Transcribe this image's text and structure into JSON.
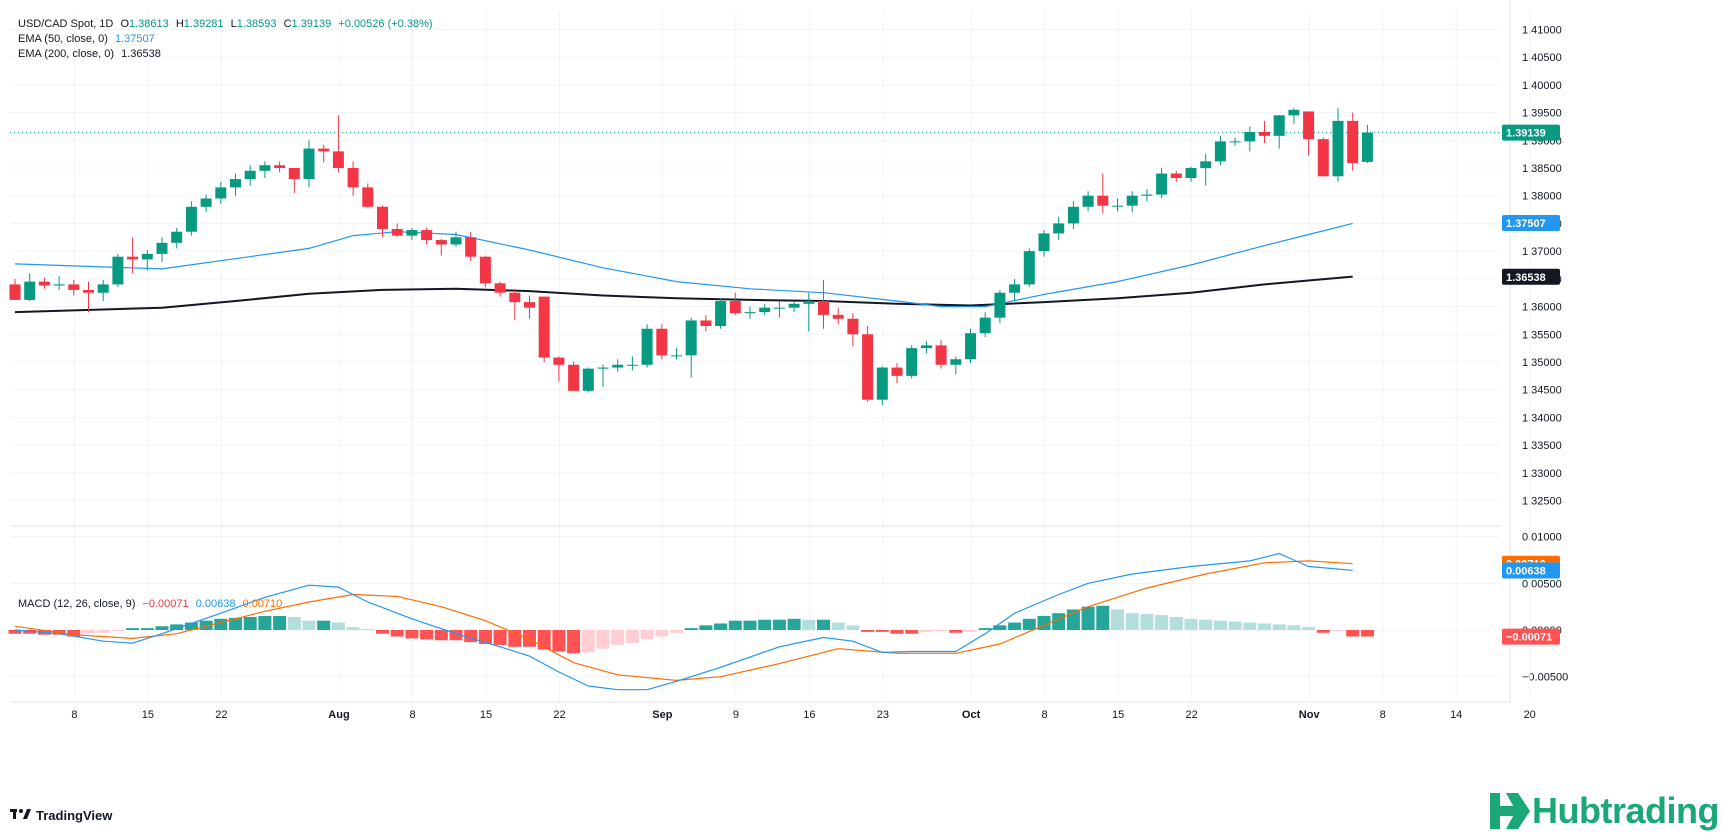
{
  "header": {
    "symbol": "USD/CAD Spot, 1D",
    "open_label": "O",
    "open": "1.38613",
    "high_label": "H",
    "high": "1.39281",
    "low_label": "L",
    "low": "1.38593",
    "close_label": "C",
    "close": "1.39139",
    "change": "+0.00526 (+0.38%)"
  },
  "ema50": {
    "label": "EMA (50, close, 0)",
    "value": "1.37507"
  },
  "ema200": {
    "label": "EMA (200, close, 0)",
    "value": "1.36538"
  },
  "macd": {
    "label": "MACD (12, 26, close, 9)",
    "hist": "−0.00071",
    "macd": "0.00638",
    "signal": "0.00710"
  },
  "footer": {
    "tradingview": "TradingView",
    "brand": "Hubtrading"
  },
  "colors": {
    "up": "#089981",
    "down": "#f23645",
    "ema50": "#2196f3",
    "ema200": "#131722",
    "signal": "#ff6d00",
    "hist_up_strong": "#26a69a",
    "hist_up_weak": "#b2dfdb",
    "hist_down_strong": "#ff5252",
    "hist_down_weak": "#ffcdd2",
    "brand": "#1aa876"
  },
  "chart_data": [
    {
      "type": "candlestick",
      "title": "USD/CAD Spot, 1D",
      "price_axis": {
        "ylim": [
          1.3215,
          1.4135
        ],
        "ticks": [
          "1.41000",
          "1.40500",
          "1.40000",
          "1.39500",
          "1.39000",
          "1.38500",
          "1.38000",
          "1.37500",
          "1.37000",
          "1.36500",
          "1.36000",
          "1.35500",
          "1.35000",
          "1.34500",
          "1.34000",
          "1.33500",
          "1.33000",
          "1.32500"
        ]
      },
      "time_axis": {
        "ticks": [
          {
            "day": 2,
            "label": "8"
          },
          {
            "day": 7,
            "label": "15"
          },
          {
            "day": 12,
            "label": "22"
          },
          {
            "day": 20,
            "label": "Aug"
          },
          {
            "day": 25,
            "label": "8"
          },
          {
            "day": 30,
            "label": "15"
          },
          {
            "day": 35,
            "label": "22"
          },
          {
            "day": 42,
            "label": "Sep"
          },
          {
            "day": 47,
            "label": "9"
          },
          {
            "day": 52,
            "label": "16"
          },
          {
            "day": 57,
            "label": "23"
          },
          {
            "day": 63,
            "label": "Oct"
          },
          {
            "day": 68,
            "label": "8"
          },
          {
            "day": 73,
            "label": "15"
          },
          {
            "day": 78,
            "label": "22"
          },
          {
            "day": 86,
            "label": "Nov"
          },
          {
            "day": 91,
            "label": "8"
          },
          {
            "day": 96,
            "label": "14"
          },
          {
            "day": 101,
            "label": "20"
          }
        ]
      },
      "last_price": "1.39139",
      "candles_ohlc": [
        [
          1.364,
          1.365,
          1.362,
          1.3612
        ],
        [
          1.3612,
          1.366,
          1.361,
          1.3645
        ],
        [
          1.3645,
          1.3652,
          1.3632,
          1.3638
        ],
        [
          1.3638,
          1.3655,
          1.363,
          1.364
        ],
        [
          1.364,
          1.3648,
          1.362,
          1.363
        ],
        [
          1.363,
          1.3645,
          1.359,
          1.3625
        ],
        [
          1.3625,
          1.3648,
          1.361,
          1.364
        ],
        [
          1.364,
          1.3695,
          1.3635,
          1.369
        ],
        [
          1.369,
          1.3725,
          1.366,
          1.3685
        ],
        [
          1.3685,
          1.3702,
          1.3665,
          1.3695
        ],
        [
          1.3695,
          1.3725,
          1.368,
          1.3715
        ],
        [
          1.3715,
          1.3742,
          1.3705,
          1.3735
        ],
        [
          1.3735,
          1.379,
          1.3728,
          1.378
        ],
        [
          1.378,
          1.3802,
          1.377,
          1.3795
        ],
        [
          1.3795,
          1.3825,
          1.3785,
          1.3815
        ],
        [
          1.3815,
          1.384,
          1.38,
          1.383
        ],
        [
          1.383,
          1.3855,
          1.3818,
          1.3845
        ],
        [
          1.3845,
          1.3862,
          1.3832,
          1.3855
        ],
        [
          1.3855,
          1.3862,
          1.3842,
          1.385
        ],
        [
          1.385,
          1.385,
          1.3805,
          1.383
        ],
        [
          1.383,
          1.39,
          1.3815,
          1.3885
        ],
        [
          1.3885,
          1.3892,
          1.386,
          1.388
        ],
        [
          1.388,
          1.3945,
          1.3842,
          1.385
        ],
        [
          1.385,
          1.3862,
          1.38,
          1.3815
        ],
        [
          1.3815,
          1.3822,
          1.3778,
          1.378
        ],
        [
          1.378,
          1.3782,
          1.3725,
          1.374
        ],
        [
          1.374,
          1.375,
          1.3725,
          1.3728
        ],
        [
          1.3728,
          1.3742,
          1.372,
          1.3738
        ],
        [
          1.3738,
          1.3742,
          1.3712,
          1.372
        ],
        [
          1.372,
          1.3722,
          1.3692,
          1.3712
        ],
        [
          1.3712,
          1.3735,
          1.3708,
          1.3725
        ],
        [
          1.3725,
          1.3735,
          1.3682,
          1.369
        ],
        [
          1.369,
          1.3692,
          1.3635,
          1.3642
        ],
        [
          1.3642,
          1.3645,
          1.3618,
          1.3625
        ],
        [
          1.3625,
          1.3632,
          1.3575,
          1.3608
        ],
        [
          1.3608,
          1.362,
          1.3578,
          1.3598
        ],
        [
          1.3618,
          1.3618,
          1.35,
          1.3508
        ],
        [
          1.3508,
          1.351,
          1.3465,
          1.3495
        ],
        [
          1.3495,
          1.35,
          1.3448,
          1.3448
        ],
        [
          1.3448,
          1.349,
          1.3445,
          1.3488
        ],
        [
          1.3488,
          1.3495,
          1.3455,
          1.349
        ],
        [
          1.349,
          1.3505,
          1.3482,
          1.3495
        ],
        [
          1.3495,
          1.351,
          1.3485,
          1.3495
        ],
        [
          1.3495,
          1.3568,
          1.349,
          1.356
        ],
        [
          1.356,
          1.3568,
          1.3505,
          1.3512
        ],
        [
          1.3512,
          1.3525,
          1.3505,
          1.3512
        ],
        [
          1.3512,
          1.358,
          1.3472,
          1.3575
        ],
        [
          1.3575,
          1.3585,
          1.3555,
          1.3565
        ],
        [
          1.3565,
          1.3615,
          1.356,
          1.361
        ],
        [
          1.361,
          1.3625,
          1.3585,
          1.3588
        ],
        [
          1.3588,
          1.36,
          1.3578,
          1.359
        ],
        [
          1.359,
          1.3605,
          1.3585,
          1.3598
        ],
        [
          1.3598,
          1.361,
          1.358,
          1.3598
        ],
        [
          1.3598,
          1.361,
          1.359,
          1.3605
        ],
        [
          1.3605,
          1.3625,
          1.3555,
          1.361
        ],
        [
          1.361,
          1.3648,
          1.356,
          1.3585
        ],
        [
          1.3585,
          1.3598,
          1.3568,
          1.3578
        ],
        [
          1.3578,
          1.3588,
          1.3528,
          1.355
        ],
        [
          1.355,
          1.3565,
          1.3428,
          1.3432
        ],
        [
          1.3432,
          1.3492,
          1.3422,
          1.349
        ],
        [
          1.349,
          1.3498,
          1.3462,
          1.3475
        ],
        [
          1.3475,
          1.353,
          1.347,
          1.3525
        ],
        [
          1.3525,
          1.3538,
          1.3515,
          1.353
        ],
        [
          1.353,
          1.354,
          1.3488,
          1.3495
        ],
        [
          1.3495,
          1.351,
          1.3478,
          1.3505
        ],
        [
          1.3505,
          1.356,
          1.3498,
          1.3552
        ],
        [
          1.3552,
          1.359,
          1.3545,
          1.358
        ],
        [
          1.358,
          1.363,
          1.357,
          1.3625
        ],
        [
          1.3625,
          1.365,
          1.361,
          1.364
        ],
        [
          1.364,
          1.3705,
          1.3635,
          1.37
        ],
        [
          1.37,
          1.3738,
          1.369,
          1.3732
        ],
        [
          1.3732,
          1.3762,
          1.372,
          1.375
        ],
        [
          1.375,
          1.379,
          1.374,
          1.378
        ],
        [
          1.378,
          1.3808,
          1.3772,
          1.38
        ],
        [
          1.38,
          1.384,
          1.3768,
          1.3782
        ],
        [
          1.3782,
          1.3795,
          1.3772,
          1.3782
        ],
        [
          1.3782,
          1.3808,
          1.377,
          1.38
        ],
        [
          1.38,
          1.3812,
          1.379,
          1.3802
        ],
        [
          1.3802,
          1.385,
          1.3795,
          1.384
        ],
        [
          1.384,
          1.3845,
          1.3825,
          1.3832
        ],
        [
          1.3832,
          1.3852,
          1.3825,
          1.385
        ],
        [
          1.385,
          1.3875,
          1.3818,
          1.3862
        ],
        [
          1.3862,
          1.3908,
          1.3855,
          1.3898
        ],
        [
          1.3898,
          1.3905,
          1.389,
          1.3898
        ],
        [
          1.3898,
          1.3925,
          1.388,
          1.3915
        ],
        [
          1.3915,
          1.3935,
          1.3895,
          1.3908
        ],
        [
          1.3908,
          1.3945,
          1.3885,
          1.3945
        ],
        [
          1.3945,
          1.3958,
          1.393,
          1.3955
        ],
        [
          1.3952,
          1.3952,
          1.3872,
          1.3902
        ],
        [
          1.3902,
          1.3905,
          1.3835,
          1.3835
        ],
        [
          1.3835,
          1.3958,
          1.3825,
          1.3935
        ],
        [
          1.3935,
          1.395,
          1.3845,
          1.3859
        ],
        [
          1.3861,
          1.3928,
          1.3859,
          1.3914
        ]
      ],
      "ema50": [
        [
          0,
          1.3677
        ],
        [
          10,
          1.3668
        ],
        [
          20,
          1.3705
        ],
        [
          23,
          1.3728
        ],
        [
          26,
          1.3735
        ],
        [
          30,
          1.373
        ],
        [
          35,
          1.3702
        ],
        [
          40,
          1.367
        ],
        [
          45,
          1.3645
        ],
        [
          50,
          1.3632
        ],
        [
          55,
          1.3625
        ],
        [
          60,
          1.361
        ],
        [
          63,
          1.36
        ],
        [
          66,
          1.36
        ],
        [
          70,
          1.3622
        ],
        [
          75,
          1.3645
        ],
        [
          80,
          1.3675
        ],
        [
          85,
          1.371
        ],
        [
          88,
          1.373
        ],
        [
          91,
          1.375
        ]
      ],
      "ema200": [
        [
          0,
          1.359
        ],
        [
          10,
          1.3598
        ],
        [
          15,
          1.361
        ],
        [
          20,
          1.3623
        ],
        [
          25,
          1.363
        ],
        [
          30,
          1.3632
        ],
        [
          35,
          1.3628
        ],
        [
          40,
          1.362
        ],
        [
          45,
          1.3615
        ],
        [
          50,
          1.3612
        ],
        [
          55,
          1.361
        ],
        [
          60,
          1.3605
        ],
        [
          65,
          1.3602
        ],
        [
          70,
          1.3608
        ],
        [
          75,
          1.3615
        ],
        [
          80,
          1.3625
        ],
        [
          85,
          1.364
        ],
        [
          91,
          1.3654
        ]
      ]
    },
    {
      "type": "macd",
      "title": "MACD (12, 26, close, 9)",
      "ylim": [
        -0.0075,
        0.0105
      ],
      "ticks": [
        "0.01000",
        "0.00500",
        "0.00000",
        "−0.00500"
      ],
      "macd_line": [
        [
          0,
          0.0
        ],
        [
          3,
          -0.0004
        ],
        [
          6,
          -0.0012
        ],
        [
          8,
          -0.0014
        ],
        [
          10,
          -0.0004
        ],
        [
          14,
          0.0018
        ],
        [
          17,
          0.0035
        ],
        [
          20,
          0.0048
        ],
        [
          22,
          0.0046
        ],
        [
          24,
          0.003
        ],
        [
          27,
          0.0012
        ],
        [
          30,
          -0.0004
        ],
        [
          33,
          -0.0018
        ],
        [
          35,
          -0.0028
        ],
        [
          37,
          -0.0045
        ],
        [
          39,
          -0.006
        ],
        [
          41,
          -0.0064
        ],
        [
          43,
          -0.0064
        ],
        [
          45,
          -0.0055
        ],
        [
          48,
          -0.004
        ],
        [
          52,
          -0.0018
        ],
        [
          55,
          -0.0008
        ],
        [
          57,
          -0.0012
        ],
        [
          59,
          -0.0024
        ],
        [
          61,
          -0.0023
        ],
        [
          64,
          -0.0023
        ],
        [
          66,
          -0.0004
        ],
        [
          68,
          0.0018
        ],
        [
          71,
          0.0038
        ],
        [
          73,
          0.005
        ],
        [
          76,
          0.006
        ],
        [
          80,
          0.0068
        ],
        [
          84,
          0.0074
        ],
        [
          86,
          0.0082
        ],
        [
          88,
          0.0068
        ],
        [
          91,
          0.0064
        ]
      ],
      "signal_line": [
        [
          0,
          0.0004
        ],
        [
          4,
          -0.0005
        ],
        [
          8,
          -0.0009
        ],
        [
          11,
          -0.0004
        ],
        [
          14,
          0.0008
        ],
        [
          17,
          0.002
        ],
        [
          20,
          0.003
        ],
        [
          23,
          0.0038
        ],
        [
          26,
          0.0036
        ],
        [
          29,
          0.0025
        ],
        [
          32,
          0.001
        ],
        [
          35,
          -0.001
        ],
        [
          38,
          -0.0035
        ],
        [
          41,
          -0.0048
        ],
        [
          45,
          -0.0054
        ],
        [
          48,
          -0.005
        ],
        [
          52,
          -0.0036
        ],
        [
          56,
          -0.002
        ],
        [
          60,
          -0.0025
        ],
        [
          64,
          -0.0025
        ],
        [
          67,
          -0.0015
        ],
        [
          70,
          0.0005
        ],
        [
          73,
          0.0025
        ],
        [
          77,
          0.0045
        ],
        [
          81,
          0.006
        ],
        [
          85,
          0.0072
        ],
        [
          88,
          0.0074
        ],
        [
          91,
          0.0071
        ]
      ],
      "histogram": [
        -0.0004,
        -0.0004,
        -0.0005,
        -0.0005,
        -0.0007,
        -0.0004,
        -0.0003,
        -0.0001,
        0.0002,
        0.0002,
        0.0004,
        0.0006,
        0.0008,
        0.001,
        0.0012,
        0.0013,
        0.0014,
        0.0015,
        0.0015,
        0.0014,
        0.001,
        0.001,
        0.0008,
        0.0003,
        0.0001,
        -0.0004,
        -0.0007,
        -0.0009,
        -0.001,
        -0.0011,
        -0.0011,
        -0.0013,
        -0.0015,
        -0.0016,
        -0.0018,
        -0.0018,
        -0.0021,
        -0.0023,
        -0.0025,
        -0.0024,
        -0.002,
        -0.0016,
        -0.0014,
        -0.001,
        -0.0007,
        -0.0003,
        0.0002,
        0.0005,
        0.0007,
        0.001,
        0.001,
        0.0011,
        0.0011,
        0.0012,
        0.0011,
        0.0011,
        0.0008,
        0.0005,
        -0.0002,
        -0.0002,
        -0.0004,
        -0.0004,
        -0.0002,
        -0.0001,
        -0.0003,
        -0.0002,
        0.0002,
        0.0005,
        0.0008,
        0.0012,
        0.0015,
        0.0018,
        0.0022,
        0.0025,
        0.0026,
        0.0022,
        0.0018,
        0.0017,
        0.0016,
        0.0014,
        0.0012,
        0.0011,
        0.001,
        0.0009,
        0.0008,
        0.0007,
        0.0006,
        0.0005,
        0.0003,
        -0.0003,
        -0.0001,
        -0.0007,
        -0.0007
      ],
      "last_values": {
        "hist": -0.00071,
        "macd": 0.00638,
        "signal": 0.0071
      }
    }
  ]
}
